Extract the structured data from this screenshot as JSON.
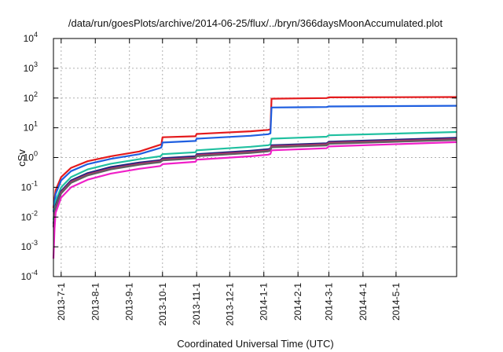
{
  "chart_data": {
    "type": "line",
    "title": "/data/run/goesPlots/archive/2014-06-25/flux/../bryn/366daysMoonAccumulated.plot",
    "xlabel": "Coordinated Universal Time (UTC)",
    "ylabel": "cSv",
    "y_scale": "log",
    "ylim": [
      0.0001,
      10000
    ],
    "xlim": [
      "2013-06-24",
      "2014-06-25"
    ],
    "grid": true,
    "legend": "none",
    "y_ticks": [
      {
        "base": "10",
        "exp": "-4",
        "value": 0.0001
      },
      {
        "base": "10",
        "exp": "-3",
        "value": 0.001
      },
      {
        "base": "10",
        "exp": "-2",
        "value": 0.01
      },
      {
        "base": "10",
        "exp": "-1",
        "value": 0.1
      },
      {
        "base": "10",
        "exp": "0",
        "value": 1
      },
      {
        "base": "10",
        "exp": "1",
        "value": 10
      },
      {
        "base": "10",
        "exp": "2",
        "value": 100
      },
      {
        "base": "10",
        "exp": "3",
        "value": 1000
      },
      {
        "base": "10",
        "exp": "4",
        "value": 10000
      }
    ],
    "x_ticks": [
      {
        "label": "2013-7-1",
        "date": "2013-07-01"
      },
      {
        "label": "2013-8-1",
        "date": "2013-08-01"
      },
      {
        "label": "2013-9-1",
        "date": "2013-09-01"
      },
      {
        "label": "2013-10-1",
        "date": "2013-10-01"
      },
      {
        "label": "2013-11-1",
        "date": "2013-11-01"
      },
      {
        "label": "2013-12-1",
        "date": "2013-12-01"
      },
      {
        "label": "2014-1-1",
        "date": "2014-01-01"
      },
      {
        "label": "2014-2-1",
        "date": "2014-02-01"
      },
      {
        "label": "2014-3-1",
        "date": "2014-03-01"
      },
      {
        "label": "2014-4-1",
        "date": "2014-04-01"
      },
      {
        "label": "2014-5-1",
        "date": "2014-05-01"
      }
    ],
    "series": [
      {
        "color": "#e41a1c",
        "points": [
          [
            "2013-06-24",
            0.02
          ],
          [
            "2013-06-26",
            0.08
          ],
          [
            "2013-07-01",
            0.22
          ],
          [
            "2013-07-10",
            0.45
          ],
          [
            "2013-07-25",
            0.75
          ],
          [
            "2013-08-15",
            1.1
          ],
          [
            "2013-09-10",
            1.6
          ],
          [
            "2013-09-29",
            2.7
          ],
          [
            "2013-09-30",
            2.8
          ],
          [
            "2013-10-01",
            4.8
          ],
          [
            "2013-10-31",
            5.2
          ],
          [
            "2013-11-01",
            6.2
          ],
          [
            "2013-12-20",
            7.6
          ],
          [
            "2014-01-05",
            8.5
          ],
          [
            "2014-01-07",
            9.0
          ],
          [
            "2014-01-08",
            95
          ],
          [
            "2014-02-27",
            100
          ],
          [
            "2014-03-01",
            105
          ],
          [
            "2014-06-25",
            108
          ]
        ]
      },
      {
        "color": "#1f5fe0",
        "points": [
          [
            "2013-06-24",
            0.015
          ],
          [
            "2013-06-26",
            0.06
          ],
          [
            "2013-07-01",
            0.17
          ],
          [
            "2013-07-10",
            0.35
          ],
          [
            "2013-07-25",
            0.6
          ],
          [
            "2013-08-15",
            0.9
          ],
          [
            "2013-09-10",
            1.3
          ],
          [
            "2013-09-29",
            2.1
          ],
          [
            "2013-09-30",
            2.2
          ],
          [
            "2013-10-01",
            3.2
          ],
          [
            "2013-10-31",
            3.6
          ],
          [
            "2013-11-01",
            4.3
          ],
          [
            "2013-12-20",
            5.4
          ],
          [
            "2014-01-05",
            6.1
          ],
          [
            "2014-01-07",
            6.5
          ],
          [
            "2014-01-08",
            48
          ],
          [
            "2014-02-27",
            50
          ],
          [
            "2014-03-01",
            52
          ],
          [
            "2014-06-25",
            55
          ]
        ]
      },
      {
        "color": "#20c0a0",
        "points": [
          [
            "2013-06-24",
            0.008
          ],
          [
            "2013-06-26",
            0.035
          ],
          [
            "2013-07-01",
            0.1
          ],
          [
            "2013-07-10",
            0.22
          ],
          [
            "2013-07-25",
            0.4
          ],
          [
            "2013-08-15",
            0.62
          ],
          [
            "2013-09-10",
            0.88
          ],
          [
            "2013-09-29",
            1.1
          ],
          [
            "2013-10-01",
            1.3
          ],
          [
            "2013-10-31",
            1.5
          ],
          [
            "2013-11-01",
            1.75
          ],
          [
            "2013-12-20",
            2.3
          ],
          [
            "2014-01-05",
            2.6
          ],
          [
            "2014-01-07",
            2.75
          ],
          [
            "2014-01-08",
            4.3
          ],
          [
            "2014-02-27",
            5.0
          ],
          [
            "2014-03-01",
            5.6
          ],
          [
            "2014-06-25",
            7.2
          ]
        ]
      },
      {
        "color": "#1a237e",
        "points": [
          [
            "2013-06-24",
            0.006
          ],
          [
            "2013-06-26",
            0.025
          ],
          [
            "2013-07-01",
            0.075
          ],
          [
            "2013-07-10",
            0.17
          ],
          [
            "2013-07-25",
            0.3
          ],
          [
            "2013-08-15",
            0.48
          ],
          [
            "2013-09-10",
            0.68
          ],
          [
            "2013-09-29",
            0.82
          ],
          [
            "2013-10-01",
            0.95
          ],
          [
            "2013-10-31",
            1.1
          ],
          [
            "2013-11-01",
            1.3
          ],
          [
            "2013-12-20",
            1.7
          ],
          [
            "2014-01-05",
            1.9
          ],
          [
            "2014-01-07",
            2.0
          ],
          [
            "2014-01-08",
            2.6
          ],
          [
            "2014-02-27",
            3.0
          ],
          [
            "2014-03-01",
            3.4
          ],
          [
            "2014-06-25",
            4.6
          ]
        ]
      },
      {
        "color": "#b0306a",
        "points": [
          [
            "2013-06-24",
            0.005
          ],
          [
            "2013-06-26",
            0.022
          ],
          [
            "2013-07-01",
            0.068
          ],
          [
            "2013-07-10",
            0.155
          ],
          [
            "2013-07-25",
            0.27
          ],
          [
            "2013-08-15",
            0.43
          ],
          [
            "2013-09-10",
            0.62
          ],
          [
            "2013-09-29",
            0.75
          ],
          [
            "2013-10-01",
            0.87
          ],
          [
            "2013-10-31",
            1.0
          ],
          [
            "2013-11-01",
            1.2
          ],
          [
            "2013-12-20",
            1.55
          ],
          [
            "2014-01-05",
            1.75
          ],
          [
            "2014-01-07",
            1.85
          ],
          [
            "2014-01-08",
            2.4
          ],
          [
            "2014-02-27",
            2.8
          ],
          [
            "2014-03-01",
            3.15
          ],
          [
            "2014-06-25",
            4.2
          ]
        ]
      },
      {
        "color": "#606060",
        "points": [
          [
            "2013-06-24",
            0.0045
          ],
          [
            "2013-06-26",
            0.02
          ],
          [
            "2013-07-01",
            0.062
          ],
          [
            "2013-07-10",
            0.14
          ],
          [
            "2013-07-25",
            0.25
          ],
          [
            "2013-08-15",
            0.4
          ],
          [
            "2013-09-10",
            0.57
          ],
          [
            "2013-09-29",
            0.7
          ],
          [
            "2013-10-01",
            0.8
          ],
          [
            "2013-10-31",
            0.93
          ],
          [
            "2013-11-01",
            1.1
          ],
          [
            "2013-12-20",
            1.42
          ],
          [
            "2014-01-05",
            1.62
          ],
          [
            "2014-01-07",
            1.7
          ],
          [
            "2014-01-08",
            2.2
          ],
          [
            "2014-02-27",
            2.55
          ],
          [
            "2014-03-01",
            2.9
          ],
          [
            "2014-06-25",
            3.9
          ]
        ]
      },
      {
        "color": "#f020c8",
        "points": [
          [
            "2013-06-24",
            0.0004
          ],
          [
            "2013-06-25",
            0.004
          ],
          [
            "2013-06-26",
            0.014
          ],
          [
            "2013-07-01",
            0.045
          ],
          [
            "2013-07-10",
            0.1
          ],
          [
            "2013-07-25",
            0.18
          ],
          [
            "2013-08-15",
            0.29
          ],
          [
            "2013-09-10",
            0.42
          ],
          [
            "2013-09-29",
            0.52
          ],
          [
            "2013-10-01",
            0.6
          ],
          [
            "2013-10-31",
            0.72
          ],
          [
            "2013-11-01",
            0.85
          ],
          [
            "2013-12-20",
            1.1
          ],
          [
            "2014-01-05",
            1.25
          ],
          [
            "2014-01-07",
            1.32
          ],
          [
            "2014-01-08",
            1.75
          ],
          [
            "2014-02-27",
            2.05
          ],
          [
            "2014-03-01",
            2.35
          ],
          [
            "2014-06-25",
            3.3
          ]
        ]
      }
    ]
  }
}
